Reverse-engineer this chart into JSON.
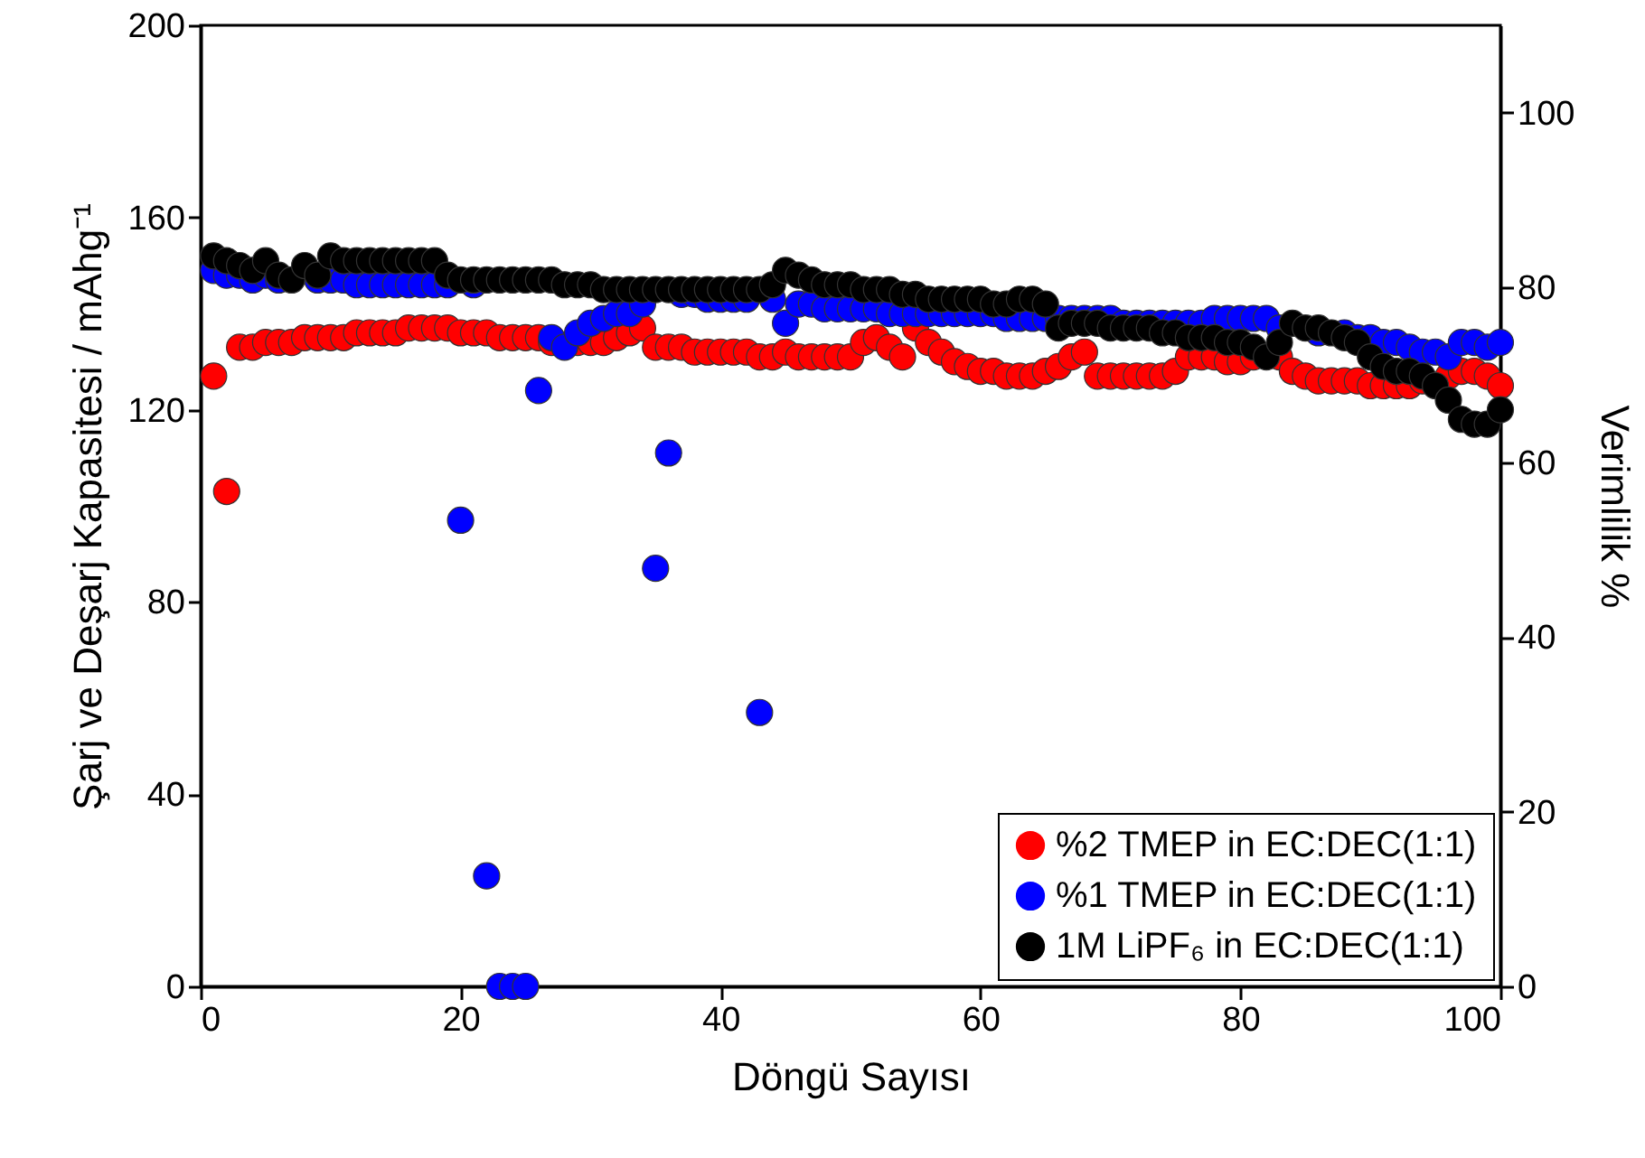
{
  "chart_data": {
    "type": "scatter",
    "xlabel": "Döngü Sayısı",
    "ylabel": "Şarj ve Deşarj Kapasitesi / mAhg⁻¹",
    "y2label": "Verimlilik %",
    "x": [
      1,
      2,
      3,
      4,
      5,
      6,
      7,
      8,
      9,
      10,
      11,
      12,
      13,
      14,
      15,
      16,
      17,
      18,
      19,
      20,
      21,
      22,
      23,
      24,
      25,
      26,
      27,
      28,
      29,
      30,
      31,
      32,
      33,
      34,
      35,
      36,
      37,
      38,
      39,
      40,
      41,
      42,
      43,
      44,
      45,
      46,
      47,
      48,
      49,
      50,
      51,
      52,
      53,
      54,
      55,
      56,
      57,
      58,
      59,
      60,
      61,
      62,
      63,
      64,
      65,
      66,
      67,
      68,
      69,
      70,
      71,
      72,
      73,
      74,
      75,
      76,
      77,
      78,
      79,
      80,
      81,
      82,
      83,
      84,
      85,
      86,
      87,
      88,
      89,
      90,
      91,
      92,
      93,
      94,
      95,
      96,
      97,
      98,
      99,
      100
    ],
    "series": [
      {
        "name": "%2 TMEP in EC:DEC(1:1)",
        "color": "#ff0000",
        "values": [
          127,
          103,
          133,
          133,
          134,
          134,
          134,
          135,
          135,
          135,
          135,
          136,
          136,
          136,
          136,
          137,
          137,
          137,
          137,
          136,
          136,
          136,
          135,
          135,
          135,
          135,
          134,
          null,
          134,
          134,
          134,
          135,
          136,
          137,
          133,
          133,
          133,
          132,
          132,
          132,
          132,
          132,
          131,
          131,
          132,
          131,
          131,
          131,
          131,
          131,
          134,
          135,
          133,
          131,
          137,
          134,
          132,
          130,
          129,
          128,
          128,
          127,
          127,
          127,
          128,
          129,
          131,
          132,
          127,
          127,
          127,
          127,
          127,
          127,
          128,
          131,
          131,
          131,
          130,
          130,
          131,
          null,
          131,
          128,
          127,
          126,
          126,
          126,
          126,
          125,
          125,
          125,
          125,
          126,
          null,
          127,
          128,
          128,
          127,
          125
        ]
      },
      {
        "name": "%1 TMEP in EC:DEC(1:1)",
        "color": "#0000ff",
        "values": [
          149,
          148,
          148,
          147,
          148,
          147,
          null,
          null,
          147,
          147,
          147,
          146,
          146,
          146,
          146,
          146,
          146,
          146,
          146,
          97,
          146,
          23,
          0,
          0,
          0,
          124,
          135,
          133,
          136,
          138,
          139,
          140,
          140,
          142,
          87,
          111,
          144,
          144,
          143,
          143,
          143,
          143,
          57,
          143,
          138,
          142,
          142,
          141,
          141,
          141,
          141,
          141,
          140,
          140,
          140,
          140,
          140,
          140,
          140,
          140,
          140,
          139,
          139,
          139,
          139,
          139,
          139,
          139,
          139,
          139,
          138,
          138,
          138,
          138,
          138,
          138,
          138,
          139,
          139,
          139,
          139,
          139,
          137,
          null,
          null,
          136,
          null,
          136,
          135,
          135,
          134,
          134,
          133,
          132,
          132,
          131,
          134,
          134,
          133,
          134
        ]
      },
      {
        "name": "1M  LiPF₆ in EC:DEC(1:1)",
        "color": "#000000",
        "values": [
          152,
          151,
          150,
          149,
          151,
          148,
          147,
          150,
          148,
          152,
          151,
          151,
          151,
          151,
          151,
          151,
          151,
          151,
          148,
          147,
          147,
          147,
          147,
          147,
          147,
          147,
          147,
          146,
          146,
          146,
          145,
          145,
          145,
          145,
          145,
          145,
          145,
          145,
          145,
          145,
          145,
          145,
          145,
          146,
          149,
          148,
          147,
          146,
          146,
          146,
          145,
          145,
          145,
          144,
          144,
          143,
          143,
          143,
          143,
          143,
          142,
          142,
          143,
          143,
          142,
          137,
          138,
          138,
          138,
          137,
          137,
          137,
          137,
          136,
          136,
          135,
          135,
          135,
          134,
          134,
          133,
          131,
          134,
          138,
          137,
          137,
          136,
          135,
          134,
          131,
          129,
          128,
          128,
          127,
          125,
          122,
          118,
          117,
          117,
          120
        ]
      }
    ],
    "xlim": [
      0,
      100
    ],
    "xticks": [
      0,
      20,
      40,
      60,
      80,
      100
    ],
    "ylim": [
      0,
      200
    ],
    "yticks": [
      0,
      40,
      80,
      120,
      160,
      200
    ],
    "y2lim": [
      0,
      110
    ],
    "y2ticks": [
      0,
      20,
      40,
      60,
      80,
      100
    ],
    "marker": "circle",
    "legend": "bottom right",
    "grid": false
  }
}
